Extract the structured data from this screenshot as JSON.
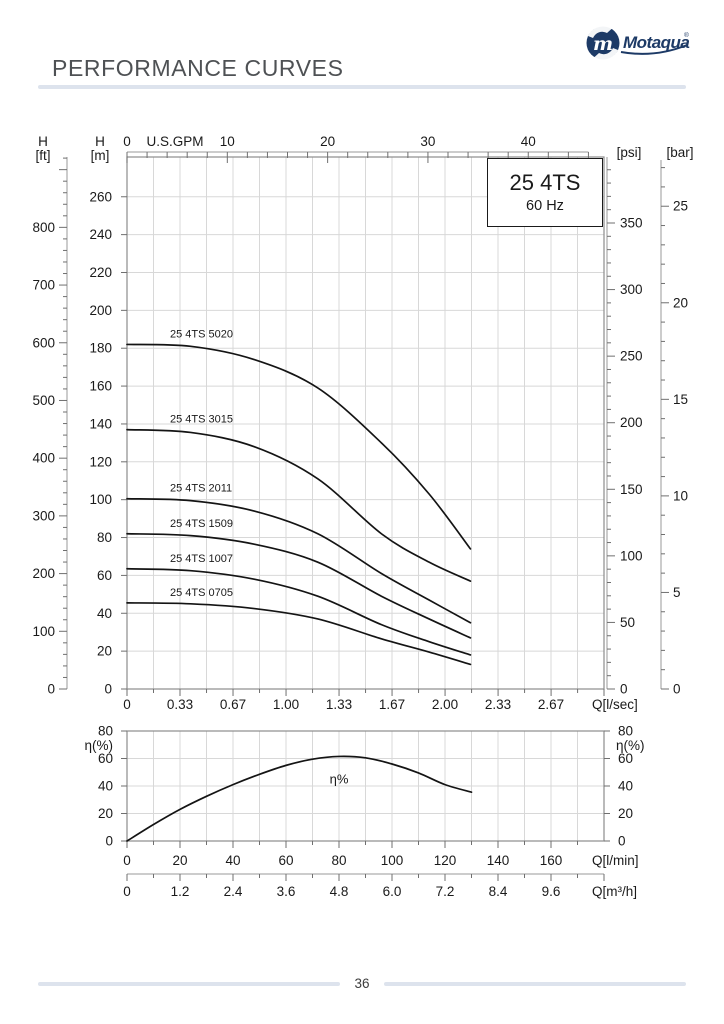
{
  "header": {
    "title": "PERFORMANCE CURVES",
    "brand": "Motaqua",
    "brand_mark": "m",
    "registered": "®"
  },
  "model_box": {
    "model": "25 4TS",
    "frequency": "60 Hz"
  },
  "footer": {
    "page_number": "36"
  },
  "colors": {
    "navy": "#1d3a66",
    "title_gray": "#4e5154",
    "divider": "#dde3ed",
    "grid": "#d8d8d8",
    "plot_border": "#8c8c8c",
    "ruler": "#9a9a9a",
    "tick": "#6f6f6f",
    "curve": "#141414",
    "text": "#1a1a1a"
  },
  "chart_data": [
    {
      "type": "line",
      "title": "25 4TS",
      "subtitle": "60 Hz",
      "x_axis_bottom": {
        "label": "Q[l/sec]",
        "tick_labels": [
          "0",
          "0.33",
          "0.67",
          "1.00",
          "1.33",
          "1.67",
          "2.00",
          "2.33",
          "2.67"
        ],
        "tick_values": [
          0,
          0.3333,
          0.6667,
          1.0,
          1.3333,
          1.6667,
          2.0,
          2.3333,
          2.6667
        ],
        "range": [
          0,
          3.0
        ],
        "minor_step": 0.1667
      },
      "x_axis_top": {
        "label": "U.S.GPM",
        "ticks": [
          0,
          10,
          20,
          30,
          40
        ],
        "minor_step": 2,
        "minor_max": 46,
        "unit_to_lsec": 0.06309
      },
      "y_axis_m": {
        "title_lines": [
          "H",
          "[m]"
        ],
        "ticks": [
          0,
          20,
          40,
          60,
          80,
          100,
          120,
          140,
          160,
          180,
          200,
          220,
          240,
          260
        ],
        "range": [
          0,
          281
        ]
      },
      "y_axis_ft": {
        "title_lines": [
          "H",
          "[ft]"
        ],
        "ticks": [
          0,
          100,
          200,
          300,
          400,
          500,
          600,
          700,
          800
        ],
        "minor_step": 20,
        "minor_max": 920,
        "unit_to_m": 0.3048
      },
      "y_axis_psi": {
        "title": "[psi]",
        "ticks": [
          0,
          50,
          100,
          150,
          200,
          250,
          300,
          350
        ],
        "minor_step": 10,
        "minor_max": 390,
        "unit_to_m": 0.70325
      },
      "y_axis_bar": {
        "title": "[bar]",
        "ticks": [
          0,
          5,
          10,
          15,
          20,
          25
        ],
        "minor_step": 1,
        "minor_max": 27,
        "unit_to_m": 10.2
      },
      "grid": {
        "x_step_lsec": 0.16667,
        "y_step_m": 20
      },
      "series": [
        {
          "name": "25 4TS 5020",
          "points": [
            [
              0,
              182
            ],
            [
              0.4,
              181
            ],
            [
              0.8,
              174
            ],
            [
              1.2,
              159
            ],
            [
              1.6,
              130
            ],
            [
              1.9,
              103
            ],
            [
              2.16,
              74
            ]
          ]
        },
        {
          "name": "25 4TS 3015",
          "points": [
            [
              0,
              137
            ],
            [
              0.4,
              135.5
            ],
            [
              0.8,
              128
            ],
            [
              1.2,
              111
            ],
            [
              1.6,
              82
            ],
            [
              1.9,
              67
            ],
            [
              2.16,
              57
            ]
          ]
        },
        {
          "name": "25 4TS 2011",
          "points": [
            [
              0,
              100.5
            ],
            [
              0.4,
              99.5
            ],
            [
              0.8,
              94
            ],
            [
              1.2,
              82
            ],
            [
              1.6,
              61
            ],
            [
              1.9,
              47
            ],
            [
              2.16,
              35
            ]
          ]
        },
        {
          "name": "25 4TS 1509",
          "points": [
            [
              0,
              82
            ],
            [
              0.4,
              81
            ],
            [
              0.8,
              76.5
            ],
            [
              1.2,
              67
            ],
            [
              1.6,
              49
            ],
            [
              1.9,
              37
            ],
            [
              2.16,
              27
            ]
          ]
        },
        {
          "name": "25 4TS 1007",
          "points": [
            [
              0,
              63.5
            ],
            [
              0.4,
              62.5
            ],
            [
              0.8,
              58
            ],
            [
              1.2,
              49
            ],
            [
              1.6,
              34
            ],
            [
              1.9,
              25
            ],
            [
              2.16,
              18
            ]
          ]
        },
        {
          "name": "25 4TS 0705",
          "points": [
            [
              0,
              45.5
            ],
            [
              0.4,
              45
            ],
            [
              0.8,
              42.5
            ],
            [
              1.2,
              37
            ],
            [
              1.6,
              26.5
            ],
            [
              1.9,
              19.5
            ],
            [
              2.16,
              13
            ]
          ]
        }
      ]
    },
    {
      "type": "line",
      "x_axis_lmin": {
        "label": "Q[l/min]",
        "ticks": [
          0,
          20,
          40,
          60,
          80,
          100,
          120,
          140,
          160
        ],
        "range": [
          0,
          180
        ],
        "minor_step": 10,
        "minor_max": 170
      },
      "x_axis_m3h": {
        "label": "Q[m³/h]",
        "tick_labels": [
          "0",
          "1.2",
          "2.4",
          "3.6",
          "4.8",
          "6.0",
          "7.2",
          "8.4",
          "9.6"
        ],
        "tick_values": [
          0,
          1.2,
          2.4,
          3.6,
          4.8,
          6.0,
          7.2,
          8.4,
          9.6
        ],
        "minor_step": 0.6,
        "minor_max": 10.2,
        "unit_to_lmin": 16.6667
      },
      "y_axis": {
        "title": "η(%)",
        "ticks": [
          0,
          20,
          40,
          60,
          80
        ],
        "range": [
          0,
          80
        ],
        "grid_step": 20
      },
      "series": [
        {
          "name": "η%",
          "points": [
            [
              0,
              0
            ],
            [
              10,
              12
            ],
            [
              20,
              23
            ],
            [
              30,
              32.5
            ],
            [
              40,
              41
            ],
            [
              50,
              48.5
            ],
            [
              60,
              55
            ],
            [
              70,
              59.5
            ],
            [
              80,
              61.5
            ],
            [
              90,
              60.5
            ],
            [
              100,
              56
            ],
            [
              110,
              49.5
            ],
            [
              120,
              41
            ],
            [
              130,
              35.5
            ]
          ],
          "label_pos": {
            "x": 80,
            "y": 42
          }
        }
      ]
    }
  ]
}
